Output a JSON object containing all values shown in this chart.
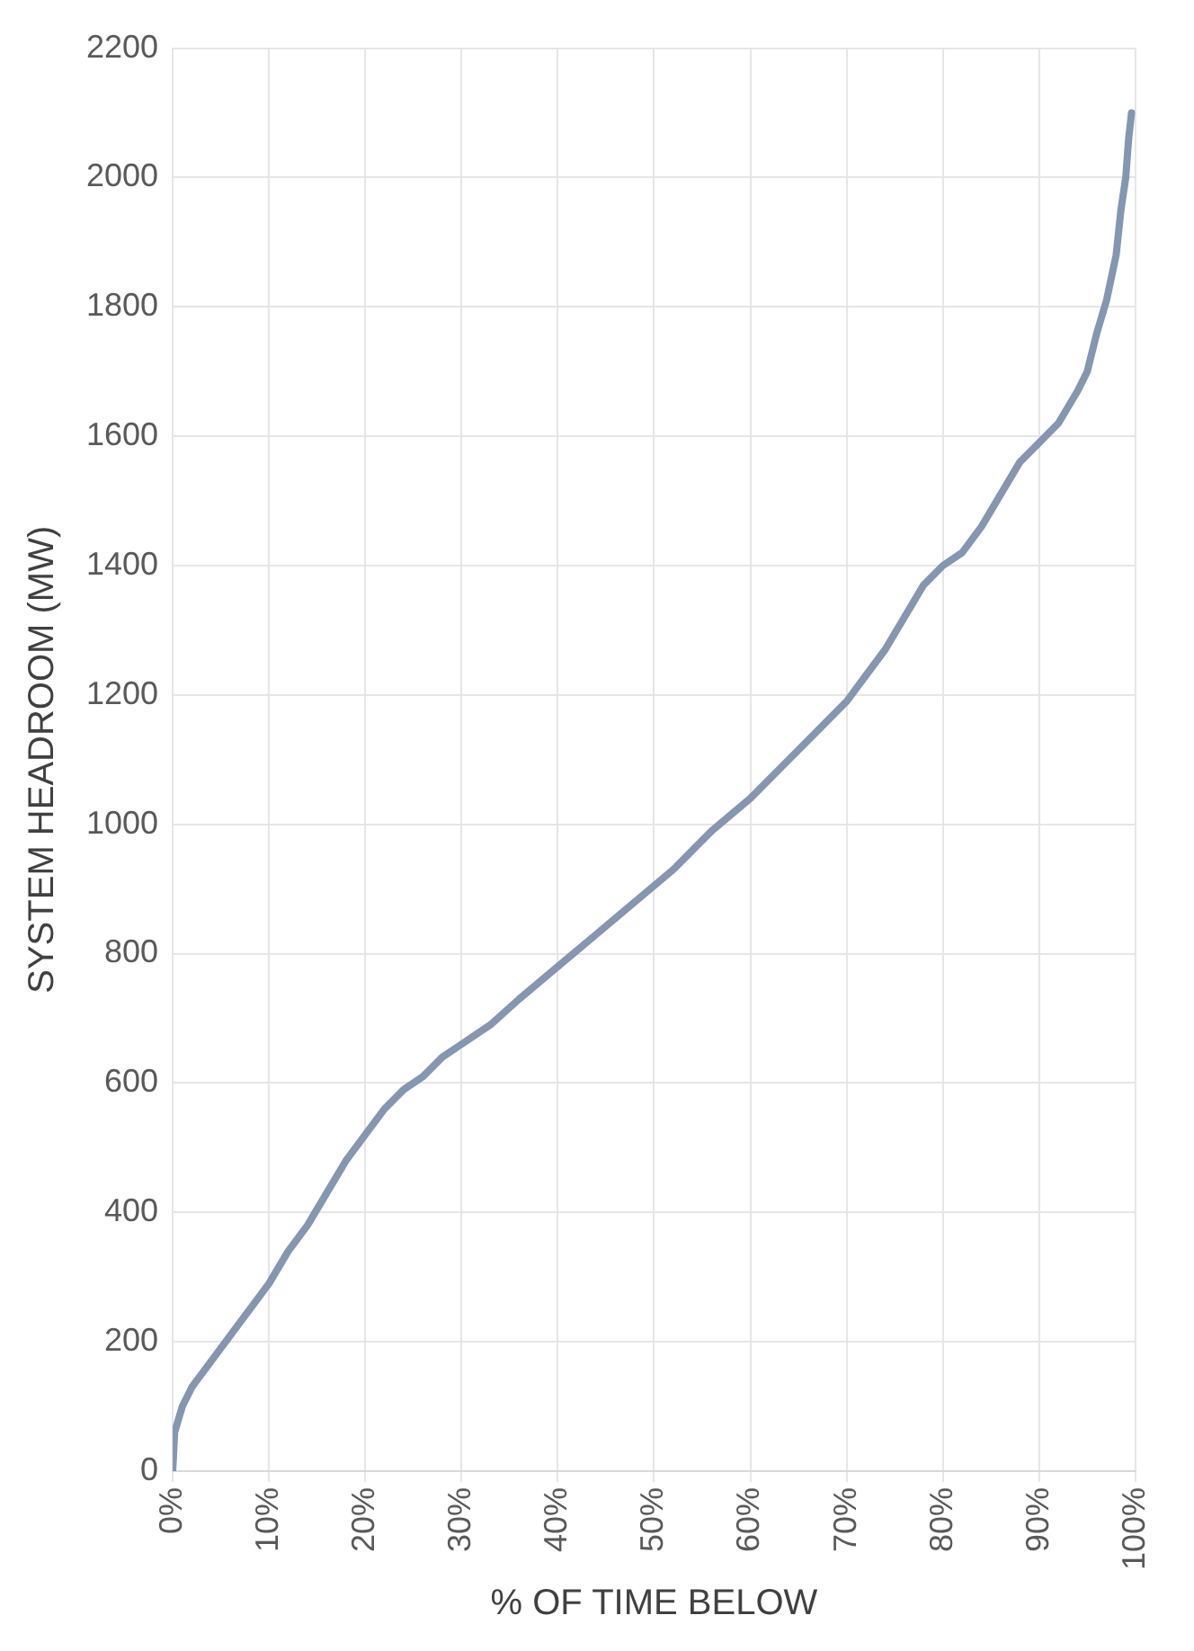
{
  "chart_data": {
    "type": "line",
    "xlabel": "% OF TIME BELOW",
    "ylabel": "SYSTEM HEADROOM (MW)",
    "x": [
      0,
      0.2,
      1,
      2,
      4,
      6,
      8,
      10,
      12,
      14,
      16,
      18,
      20,
      22,
      24,
      26,
      28,
      30,
      33,
      36,
      40,
      44,
      48,
      52,
      56,
      60,
      64,
      68,
      70,
      72,
      74,
      76,
      78,
      80,
      82,
      84,
      86,
      88,
      90,
      92,
      94,
      95,
      96,
      97,
      98,
      98.5,
      99,
      99.3,
      99.6
    ],
    "series": [
      {
        "color": "#8496b0",
        "values": [
          0,
          60,
          100,
          130,
          170,
          210,
          250,
          290,
          340,
          380,
          430,
          480,
          520,
          560,
          590,
          610,
          640,
          660,
          690,
          730,
          780,
          830,
          880,
          930,
          990,
          1040,
          1100,
          1160,
          1190,
          1230,
          1270,
          1320,
          1370,
          1400,
          1420,
          1460,
          1510,
          1560,
          1590,
          1620,
          1670,
          1700,
          1760,
          1810,
          1880,
          1950,
          2000,
          2060,
          2100
        ]
      }
    ],
    "xlim": [
      0,
      100
    ],
    "xticks": [
      {
        "value": 0,
        "label": "0%"
      },
      {
        "value": 10,
        "label": "10%"
      },
      {
        "value": 20,
        "label": "20%"
      },
      {
        "value": 30,
        "label": "30%"
      },
      {
        "value": 40,
        "label": "40%"
      },
      {
        "value": 50,
        "label": "50%"
      },
      {
        "value": 60,
        "label": "60%"
      },
      {
        "value": 70,
        "label": "70%"
      },
      {
        "value": 80,
        "label": "80%"
      },
      {
        "value": 90,
        "label": "90%"
      },
      {
        "value": 100,
        "label": "100%"
      }
    ],
    "ylim": [
      0,
      2200
    ],
    "yticks": [
      0,
      200,
      400,
      600,
      800,
      1000,
      1200,
      1400,
      1600,
      1800,
      2000,
      2200
    ],
    "grid": true,
    "legend": false,
    "marker": "none",
    "line_style": "solid"
  }
}
